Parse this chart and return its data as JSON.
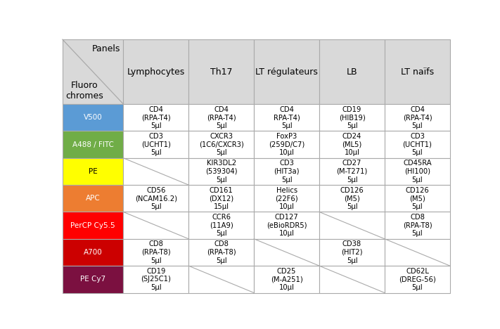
{
  "header_row": [
    "",
    "Lymphocytes",
    "Th17",
    "LT régulateurs",
    "LB",
    "LT naïfs"
  ],
  "fluoro_labels": [
    "V500",
    "A488 / FITC",
    "PE",
    "APC",
    "PerCP Cy5.5",
    "A700",
    "PE Cy7"
  ],
  "fluoro_colors": [
    "#5b9bd5",
    "#70ad47",
    "#ffff00",
    "#ed7d31",
    "#ff0000",
    "#cc0000",
    "#7b1040"
  ],
  "fluoro_text_colors": [
    "white",
    "white",
    "black",
    "white",
    "white",
    "white",
    "white"
  ],
  "cell_data": [
    [
      "CD4\n(RPA-T4)\n5µl",
      "CD4\n(RPA-T4)\n5µl",
      "CD4\nRPA-T4)\n5µl",
      "CD19\n(HIB19)\n5µl",
      "CD4\n(RPA-T4)\n5µl"
    ],
    [
      "CD3\n(UCHT1)\n5µl",
      "CXCR3\n(1C6/CXCR3)\n5µl",
      "FoxP3\n(259D/C7)\n10µl",
      "CD24\n(ML5)\n10µl",
      "CD3\n(UCHT1)\n5µl"
    ],
    [
      null,
      "KIR3DL2\n(539304)\n5µl",
      "CD3\n(HIT3a)\n5µl",
      "CD27\n(M-T271)\n5µl",
      "CD45RA\n(HI100)\n5µl"
    ],
    [
      "CD56\n(NCAM16.2)\n5µl",
      "CD161\n(DX12)\n15µl",
      "Helics\n(22F6)\n10µl",
      "CD126\n(M5)\n5µl",
      "CD126\n(M5)\n5µl"
    ],
    [
      null,
      "CCR6\n(11A9)\n5µl",
      "CD127\n(eBioRDR5)\n10µl",
      null,
      "CD8\n(RPA-T8)\n5µl"
    ],
    [
      "CD8\n(RPA-T8)\n5µl",
      "CD8\n(RPA-T8)\n5µl",
      null,
      "CD38\n(HIT2)\n5µl",
      null
    ],
    [
      "CD19\n(SJ25C1)\n5µl",
      null,
      "CD25\n(M-A251)\n10µl",
      null,
      "CD62L\n(DREG-56)\n5µl"
    ]
  ],
  "header_bg": "#d9d9d9",
  "white": "#ffffff",
  "border_color": "#aaaaaa",
  "diag_color": "#aaaaaa",
  "text_fontsize": 7.2,
  "header_fontsize": 9.0,
  "fluoro_fontsize": 7.5
}
